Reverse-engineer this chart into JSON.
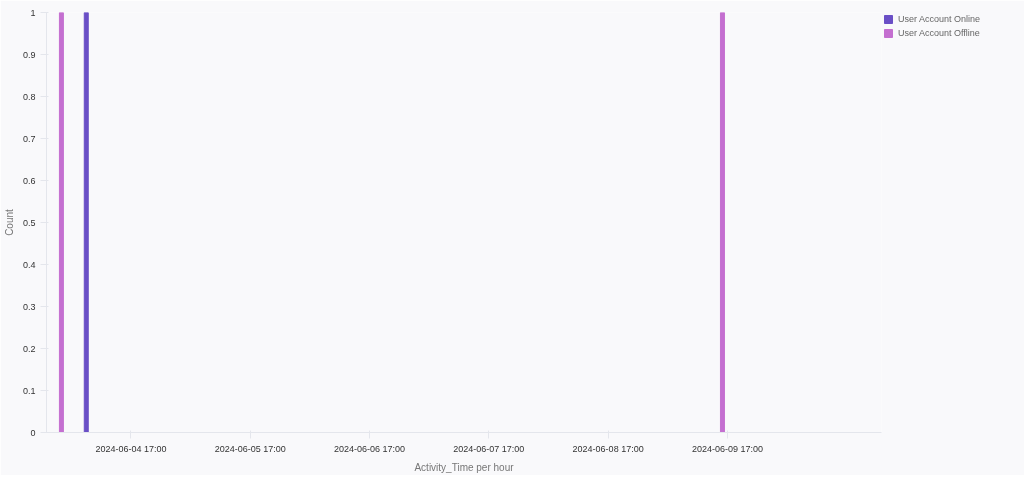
{
  "chart_data": {
    "type": "bar",
    "xlabel": "Activity_Time per hour",
    "ylabel": "Count",
    "xlim": [
      "2024-06-04T00:00",
      "2024-06-11T00:00"
    ],
    "xticks": [
      {
        "value": "2024-06-04T17:00",
        "label": "2024-06-04 17:00"
      },
      {
        "value": "2024-06-05T17:00",
        "label": "2024-06-05 17:00"
      },
      {
        "value": "2024-06-06T17:00",
        "label": "2024-06-06 17:00"
      },
      {
        "value": "2024-06-07T17:00",
        "label": "2024-06-07 17:00"
      },
      {
        "value": "2024-06-08T17:00",
        "label": "2024-06-08 17:00"
      },
      {
        "value": "2024-06-09T17:00",
        "label": "2024-06-09 17:00"
      }
    ],
    "ylim": [
      0,
      1
    ],
    "yticks": [
      0,
      0.1,
      0.2,
      0.3,
      0.4,
      0.5,
      0.6,
      0.7,
      0.8,
      0.9,
      1
    ],
    "series": [
      {
        "name": "User Account Online",
        "color": "#6a4fc6",
        "x": [
          "2024-06-04T08:00"
        ],
        "values": [
          1
        ]
      },
      {
        "name": "User Account Offline",
        "color": "#c46fd0",
        "x": [
          "2024-06-04T03:00",
          "2024-06-09T16:00"
        ],
        "values": [
          1,
          1
        ]
      }
    ],
    "grid": false,
    "legend": "top right"
  }
}
